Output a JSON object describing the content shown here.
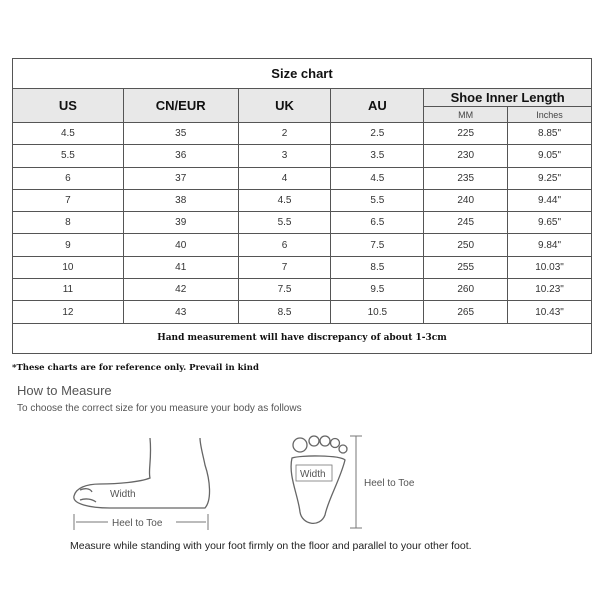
{
  "table": {
    "title": "Size chart",
    "headers": [
      "US",
      "CN/EUR",
      "UK",
      "AU"
    ],
    "group_header": "Shoe Inner Length",
    "sub_headers": [
      "MM",
      "Inches"
    ],
    "rows": [
      [
        "4.5",
        "35",
        "2",
        "2.5",
        "225",
        "8.85\""
      ],
      [
        "5.5",
        "36",
        "3",
        "3.5",
        "230",
        "9.05\""
      ],
      [
        "6",
        "37",
        "4",
        "4.5",
        "235",
        "9.25\""
      ],
      [
        "7",
        "38",
        "4.5",
        "5.5",
        "240",
        "9.44\""
      ],
      [
        "8",
        "39",
        "5.5",
        "6.5",
        "245",
        "9.65\""
      ],
      [
        "9",
        "40",
        "6",
        "7.5",
        "250",
        "9.84\""
      ],
      [
        "10",
        "41",
        "7",
        "8.5",
        "255",
        "10.03\""
      ],
      [
        "11",
        "42",
        "7.5",
        "9.5",
        "260",
        "10.23\""
      ],
      [
        "12",
        "43",
        "8.5",
        "10.5",
        "265",
        "10.43\""
      ]
    ],
    "note": "Hand measurement will have discrepancy of about 1-3cm"
  },
  "disclaimer": "*These charts are for reference only. Prevail in kind",
  "how_to": {
    "title": "How to Measure",
    "subtitle": "To choose the correct size for you measure your body as follows",
    "side_labels": {
      "width": "Width",
      "length": "Heel to Toe"
    },
    "sole_labels": {
      "width": "Width",
      "length": "Heel to Toe"
    },
    "footer": "Measure while standing with your foot firmly on the floor and parallel to your other foot."
  }
}
